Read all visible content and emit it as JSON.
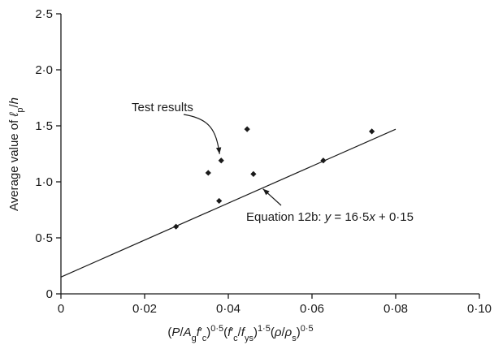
{
  "chart_data": {
    "type": "scatter",
    "xlim": [
      0,
      0.1
    ],
    "ylim": [
      0,
      2.5
    ],
    "x_ticks": [
      0,
      0.02,
      0.04,
      0.06,
      0.08,
      0.1
    ],
    "x_tick_labels": [
      "0",
      "0·02",
      "0·04",
      "0·06",
      "0·08",
      "0·10"
    ],
    "y_ticks": [
      0,
      0.5,
      1.0,
      1.5,
      2.0,
      2.5
    ],
    "y_tick_labels": [
      "0",
      "0·5",
      "1·0",
      "1·5",
      "2·0",
      "2·5"
    ],
    "xlabel_parts": [
      {
        "t": "(",
        "style": "normal"
      },
      {
        "t": "P",
        "style": "italic"
      },
      {
        "t": "/",
        "style": "normal"
      },
      {
        "t": "A",
        "style": "italic"
      },
      {
        "t": "g",
        "style": "sub"
      },
      {
        "t": "f",
        "style": "italic"
      },
      {
        "t": "′",
        "style": "normal"
      },
      {
        "t": "c",
        "style": "sub"
      },
      {
        "t": ")",
        "style": "normal"
      },
      {
        "t": "0·5",
        "style": "sup"
      },
      {
        "t": "(",
        "style": "normal"
      },
      {
        "t": "f",
        "style": "italic"
      },
      {
        "t": "′",
        "style": "normal"
      },
      {
        "t": "c",
        "style": "sub"
      },
      {
        "t": "/",
        "style": "normal"
      },
      {
        "t": "f",
        "style": "italic"
      },
      {
        "t": "ys",
        "style": "sub"
      },
      {
        "t": ")",
        "style": "normal"
      },
      {
        "t": "1·5",
        "style": "sup"
      },
      {
        "t": "(",
        "style": "normal"
      },
      {
        "t": "ρ",
        "style": "italic"
      },
      {
        "t": "/",
        "style": "normal"
      },
      {
        "t": "ρ",
        "style": "italic"
      },
      {
        "t": "s",
        "style": "sub"
      },
      {
        "t": ")",
        "style": "normal"
      },
      {
        "t": "0·5",
        "style": "sup"
      }
    ],
    "ylabel_parts": [
      {
        "t": "Average value of ",
        "style": "normal"
      },
      {
        "t": "ℓ",
        "style": "italic"
      },
      {
        "t": "p",
        "style": "sub"
      },
      {
        "t": "/",
        "style": "normal"
      },
      {
        "t": "h",
        "style": "italic"
      }
    ],
    "series": [
      {
        "points": [
          {
            "x": 0.0275,
            "y": 0.6
          },
          {
            "x": 0.0352,
            "y": 1.08
          },
          {
            "x": 0.0378,
            "y": 0.83
          },
          {
            "x": 0.0383,
            "y": 1.19
          },
          {
            "x": 0.0445,
            "y": 1.47
          },
          {
            "x": 0.046,
            "y": 1.07
          },
          {
            "x": 0.0627,
            "y": 1.19
          },
          {
            "x": 0.0743,
            "y": 1.45
          }
        ]
      }
    ],
    "fit_line": {
      "slope": 16.5,
      "intercept": 0.15,
      "x_range": [
        0,
        0.08
      ]
    },
    "annotations": [
      {
        "id": "test-results",
        "parts": [
          {
            "t": "Test results",
            "style": "normal"
          }
        ],
        "target": {
          "x": 0.0383,
          "y": 1.19
        }
      },
      {
        "id": "equation",
        "parts": [
          {
            "t": "Equation 12b: ",
            "style": "normal"
          },
          {
            "t": "y",
            "style": "italic"
          },
          {
            "t": " = 16·5",
            "style": "normal"
          },
          {
            "t": "x",
            "style": "italic"
          },
          {
            "t": " + 0·15",
            "style": "normal"
          }
        ],
        "target": {
          "x": 0.0475,
          "y": 0.93
        }
      }
    ]
  }
}
